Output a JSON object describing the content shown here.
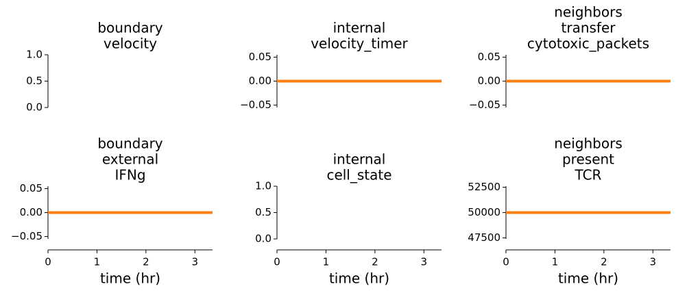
{
  "chart_data": [
    {
      "type": "line",
      "title": [
        "boundary",
        "velocity"
      ],
      "xlim": [
        0,
        3.36
      ],
      "ylim": [
        0,
        1
      ],
      "yticks": [
        {
          "value": 0,
          "label": "0.0"
        },
        {
          "value": 0.5,
          "label": "0.5"
        },
        {
          "value": 1,
          "label": "1.0"
        }
      ],
      "series": []
    },
    {
      "type": "line",
      "title": [
        "internal",
        "velocity_timer"
      ],
      "xlim": [
        0,
        3.36
      ],
      "ylim": [
        -0.055,
        0.055
      ],
      "yticks": [
        {
          "value": -0.05,
          "label": "−0.05"
        },
        {
          "value": 0,
          "label": "0.00"
        },
        0.05
      ],
      "series": [
        {
          "color": "#ff7f0e",
          "x": [
            0,
            3.36
          ],
          "values": [
            0,
            0
          ]
        }
      ]
    },
    {
      "type": "line",
      "title": [
        "neighbors",
        "transfer",
        "cytotoxic_packets"
      ],
      "xlim": [
        0,
        3.36
      ],
      "ylim": [
        -0.055,
        0.055
      ],
      "yticks": [
        {
          "value": -0.05,
          "label": "−0.05"
        },
        {
          "value": 0,
          "label": "0.00"
        },
        0.05
      ],
      "series": [
        {
          "color": "#ff7f0e",
          "x": [
            0,
            3.36
          ],
          "values": [
            0,
            0
          ]
        }
      ]
    },
    {
      "type": "line",
      "title": [
        "boundary",
        "external",
        "IFNg"
      ],
      "xlim": [
        0,
        3.36
      ],
      "ylim": [
        -0.055,
        0.055
      ],
      "yticks": [
        {
          "value": -0.05,
          "label": "−0.05"
        },
        {
          "value": 0,
          "label": "0.00"
        },
        0.05
      ],
      "xticks": [
        0,
        1,
        2,
        3
      ],
      "xlabel": "time (hr)",
      "series": [
        {
          "color": "#ff7f0e",
          "x": [
            0,
            3.36
          ],
          "values": [
            0,
            0
          ]
        }
      ]
    },
    {
      "type": "line",
      "title": [
        "internal",
        "cell_state"
      ],
      "xlim": [
        0,
        3.36
      ],
      "ylim": [
        0,
        1
      ],
      "yticks": [
        {
          "value": 0,
          "label": "0.0"
        },
        {
          "value": 0.5,
          "label": "0.5"
        },
        {
          "value": 1,
          "label": "1.0"
        }
      ],
      "xticks": [
        0,
        1,
        2,
        3
      ],
      "xlabel": "time (hr)",
      "series": []
    },
    {
      "type": "line",
      "title": [
        "neighbors",
        "present",
        "TCR"
      ],
      "xlim": [
        0,
        3.36
      ],
      "ylim": [
        47400,
        52600
      ],
      "yticks": [
        47500,
        50000,
        52500
      ],
      "xticks": [
        0,
        1,
        2,
        3
      ],
      "xlabel": "time (hr)",
      "series": [
        {
          "color": "#ff7f0e",
          "x": [
            0,
            3.36
          ],
          "values": [
            50000,
            50000
          ]
        }
      ]
    }
  ]
}
